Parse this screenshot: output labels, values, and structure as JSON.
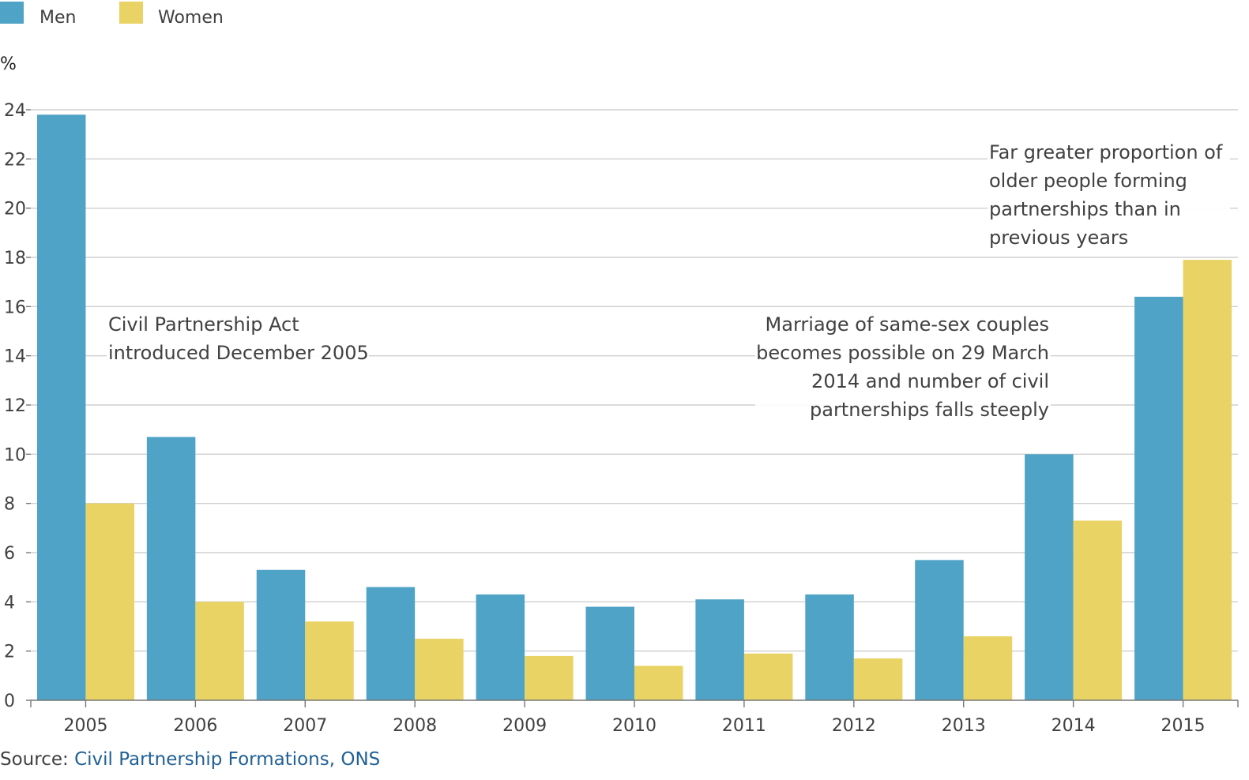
{
  "chart_data": {
    "type": "bar",
    "unit_label": "%",
    "categories": [
      "2005",
      "2006",
      "2007",
      "2008",
      "2009",
      "2010",
      "2011",
      "2012",
      "2013",
      "2014",
      "2015"
    ],
    "series": [
      {
        "name": "Men",
        "color": "#4fa3c6",
        "values": [
          23.8,
          10.7,
          5.3,
          4.6,
          4.3,
          3.8,
          4.1,
          4.3,
          5.7,
          10.0,
          16.4
        ]
      },
      {
        "name": "Women",
        "color": "#e9d364",
        "values": [
          8.0,
          4.0,
          3.2,
          2.5,
          1.8,
          1.4,
          1.9,
          1.7,
          2.6,
          7.3,
          17.9
        ]
      }
    ],
    "ylim": [
      0,
      24
    ],
    "yticks": [
      "0",
      "2",
      "4",
      "6",
      "8",
      "10",
      "12",
      "14",
      "16",
      "18",
      "20",
      "22",
      "24"
    ],
    "grid": true,
    "legend": "top-left",
    "annotations": [
      {
        "lines": [
          "Civil Partnership Act",
          "introduced December 2005"
        ]
      },
      {
        "lines": [
          "Marriage of same-sex couples",
          "becomes possible on 29 March",
          "2014 and number of civil",
          "partnerships falls steeply"
        ]
      },
      {
        "lines": [
          "Far greater proportion of",
          "older people forming",
          "partnerships than in",
          "previous years"
        ]
      }
    ]
  },
  "source": {
    "prefix": "Source:",
    "link_text": "Civil Partnership Formations, ONS"
  }
}
